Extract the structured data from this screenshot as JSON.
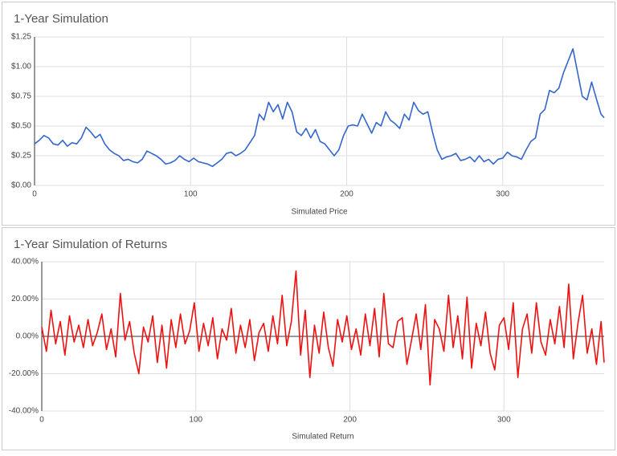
{
  "chart_data": [
    {
      "type": "line",
      "title": "1-Year Simulation",
      "x_label": "Simulated Price",
      "color": "#3366cc",
      "x": [
        0,
        3,
        6,
        9,
        12,
        15,
        18,
        21,
        24,
        27,
        30,
        33,
        36,
        39,
        42,
        45,
        48,
        51,
        54,
        57,
        60,
        63,
        66,
        69,
        72,
        75,
        78,
        81,
        84,
        87,
        90,
        93,
        96,
        99,
        102,
        105,
        108,
        111,
        114,
        117,
        120,
        123,
        126,
        129,
        132,
        135,
        138,
        141,
        144,
        147,
        150,
        153,
        156,
        159,
        162,
        165,
        168,
        171,
        174,
        177,
        180,
        183,
        186,
        189,
        192,
        195,
        198,
        201,
        204,
        207,
        210,
        213,
        216,
        219,
        222,
        225,
        228,
        231,
        234,
        237,
        240,
        243,
        246,
        249,
        252,
        255,
        258,
        261,
        264,
        267,
        270,
        273,
        276,
        279,
        282,
        285,
        288,
        291,
        294,
        297,
        300,
        303,
        306,
        309,
        312,
        315,
        318,
        321,
        324,
        327,
        330,
        333,
        336,
        339,
        342,
        345,
        348,
        351,
        354,
        357,
        360,
        363,
        365
      ],
      "values": [
        0.35,
        0.38,
        0.42,
        0.4,
        0.35,
        0.34,
        0.38,
        0.33,
        0.36,
        0.35,
        0.4,
        0.49,
        0.45,
        0.4,
        0.43,
        0.35,
        0.3,
        0.27,
        0.25,
        0.21,
        0.22,
        0.2,
        0.19,
        0.22,
        0.29,
        0.27,
        0.25,
        0.22,
        0.18,
        0.19,
        0.21,
        0.25,
        0.22,
        0.2,
        0.23,
        0.2,
        0.19,
        0.18,
        0.16,
        0.19,
        0.22,
        0.27,
        0.28,
        0.25,
        0.27,
        0.3,
        0.36,
        0.42,
        0.6,
        0.55,
        0.7,
        0.62,
        0.68,
        0.56,
        0.7,
        0.62,
        0.45,
        0.42,
        0.48,
        0.4,
        0.47,
        0.37,
        0.35,
        0.3,
        0.25,
        0.3,
        0.42,
        0.5,
        0.51,
        0.5,
        0.6,
        0.52,
        0.44,
        0.53,
        0.5,
        0.62,
        0.55,
        0.52,
        0.48,
        0.6,
        0.55,
        0.7,
        0.63,
        0.6,
        0.62,
        0.45,
        0.3,
        0.22,
        0.24,
        0.25,
        0.27,
        0.21,
        0.22,
        0.24,
        0.2,
        0.25,
        0.2,
        0.22,
        0.18,
        0.22,
        0.23,
        0.28,
        0.25,
        0.24,
        0.22,
        0.3,
        0.37,
        0.4,
        0.6,
        0.64,
        0.8,
        0.78,
        0.82,
        0.95,
        1.05,
        1.15,
        0.95,
        0.75,
        0.72,
        0.87,
        0.73,
        0.6,
        0.57
      ],
      "xlim": [
        0,
        365
      ],
      "xticks": [
        0,
        100,
        200,
        300
      ],
      "ylim": [
        0,
        1.25
      ],
      "yticks": [
        {
          "value": 0,
          "label": "$0.00"
        },
        {
          "value": 0.25,
          "label": "$0.25"
        },
        {
          "value": 0.5,
          "label": "$0.50"
        },
        {
          "value": 0.75,
          "label": "$0.75"
        },
        {
          "value": 1,
          "label": "$1.00"
        },
        {
          "value": 1.25,
          "label": "$1.25"
        }
      ],
      "grid": true
    },
    {
      "type": "line",
      "title": "1-Year Simulation of Returns",
      "x_label": "Simulated Return",
      "color": "#ee1111",
      "x": [
        0,
        3,
        6,
        9,
        12,
        15,
        18,
        21,
        24,
        27,
        30,
        33,
        36,
        39,
        42,
        45,
        48,
        51,
        54,
        57,
        60,
        63,
        66,
        69,
        72,
        75,
        78,
        81,
        84,
        87,
        90,
        93,
        96,
        99,
        102,
        105,
        108,
        111,
        114,
        117,
        120,
        123,
        126,
        129,
        132,
        135,
        138,
        141,
        144,
        147,
        150,
        153,
        156,
        159,
        162,
        165,
        168,
        171,
        174,
        177,
        180,
        183,
        186,
        189,
        192,
        195,
        198,
        201,
        204,
        207,
        210,
        213,
        216,
        219,
        222,
        225,
        228,
        231,
        234,
        237,
        240,
        243,
        246,
        249,
        252,
        255,
        258,
        261,
        264,
        267,
        270,
        273,
        276,
        279,
        282,
        285,
        288,
        291,
        294,
        297,
        300,
        303,
        306,
        309,
        312,
        315,
        318,
        321,
        324,
        327,
        330,
        333,
        336,
        339,
        342,
        345,
        348,
        351,
        354,
        357,
        360,
        363,
        365
      ],
      "values": [
        5,
        -8,
        14,
        -4,
        8,
        -10,
        11,
        -3,
        6,
        -6,
        9,
        -5,
        2,
        12,
        -7,
        4,
        -11,
        23,
        -2,
        8,
        -9,
        -20,
        5,
        -3,
        11,
        -14,
        6,
        -17,
        9,
        -6,
        12,
        -4,
        3,
        18,
        -8,
        7,
        -5,
        10,
        -12,
        4,
        -2,
        15,
        -9,
        6,
        -6,
        9,
        -13,
        2,
        7,
        -8,
        11,
        -4,
        22,
        -5,
        8,
        35,
        -10,
        14,
        -22,
        6,
        -9,
        13,
        -6,
        -16,
        9,
        -3,
        11,
        -7,
        4,
        -10,
        12,
        -5,
        15,
        -11,
        23,
        -4,
        -6,
        8,
        10,
        -15,
        -2,
        12,
        -7,
        17,
        -26,
        9,
        4,
        -8,
        22,
        -6,
        11,
        -12,
        21,
        -17,
        7,
        -5,
        13,
        -9,
        -18,
        6,
        10,
        -7,
        18,
        -22,
        4,
        12,
        -9,
        18,
        -3,
        -10,
        9,
        -4,
        16,
        -6,
        28,
        -12,
        7,
        22,
        -9,
        4,
        -15,
        8,
        -14
      ],
      "xlim": [
        0,
        365
      ],
      "xticks": [
        0,
        100,
        200,
        300
      ],
      "ylim": [
        -40,
        40
      ],
      "yticks": [
        {
          "value": -40,
          "label": "-40.00%"
        },
        {
          "value": -20,
          "label": "-20.00%"
        },
        {
          "value": 0,
          "label": "0.00%"
        },
        {
          "value": 20,
          "label": "20.00%"
        },
        {
          "value": 40,
          "label": "40.00%"
        }
      ],
      "grid": true
    }
  ]
}
